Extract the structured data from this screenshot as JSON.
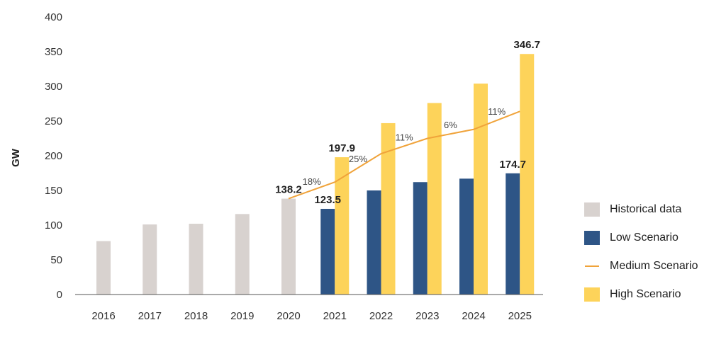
{
  "chart_data": {
    "type": "bar",
    "ylabel": "GW",
    "xlabel": "",
    "ylim": [
      0,
      400
    ],
    "yticks": [
      0,
      50,
      100,
      150,
      200,
      250,
      300,
      350,
      400
    ],
    "grid": false,
    "legend_position": "right",
    "categories": [
      "2016",
      "2017",
      "2018",
      "2019",
      "2020",
      "2021",
      "2022",
      "2023",
      "2024",
      "2025"
    ],
    "series": [
      {
        "name": "Historical data",
        "kind": "bar",
        "color": "#d8d2cf",
        "values": [
          77,
          101,
          102,
          116,
          138.2,
          null,
          null,
          null,
          null,
          null
        ]
      },
      {
        "name": "Low Scenario",
        "kind": "bar",
        "color": "#2e5586",
        "values": [
          null,
          null,
          null,
          null,
          null,
          123.5,
          150,
          162,
          167,
          174.7
        ]
      },
      {
        "name": "Medium Scenario",
        "kind": "line",
        "color": "#f0a33a",
        "values": [
          null,
          null,
          null,
          null,
          138.2,
          162,
          203,
          225,
          238,
          264
        ],
        "growth_labels": [
          null,
          null,
          null,
          null,
          null,
          "18%",
          "25%",
          "11%",
          "6%",
          "11%"
        ]
      },
      {
        "name": "High Scenario",
        "kind": "bar",
        "color": "#fdd35a",
        "values": [
          null,
          null,
          null,
          null,
          null,
          197.9,
          247,
          276,
          304,
          346.7
        ]
      }
    ],
    "value_labels": [
      {
        "category": "2020",
        "series": "Historical data",
        "text": "138.2"
      },
      {
        "category": "2021",
        "series": "Low Scenario",
        "text": "123.5"
      },
      {
        "category": "2021",
        "series": "High Scenario",
        "text": "197.9"
      },
      {
        "category": "2025",
        "series": "Low Scenario",
        "text": "174.7"
      },
      {
        "category": "2025",
        "series": "High Scenario",
        "text": "346.7"
      }
    ]
  },
  "legend": {
    "items": [
      {
        "label": "Historical data",
        "color": "#d8d2cf",
        "kind": "box"
      },
      {
        "label": "Low Scenario",
        "color": "#2e5586",
        "kind": "box"
      },
      {
        "label": "Medium Scenario",
        "color": "#f0a33a",
        "kind": "line"
      },
      {
        "label": "High Scenario",
        "color": "#fdd35a",
        "kind": "box"
      }
    ]
  }
}
